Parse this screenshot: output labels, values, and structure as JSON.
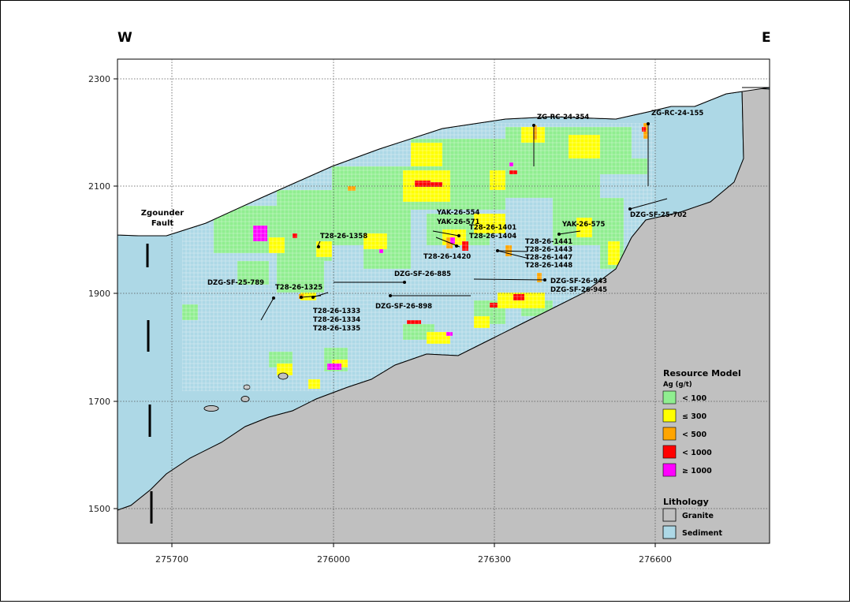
{
  "compass": {
    "west": "W",
    "east": "E"
  },
  "axes": {
    "x_ticks": [
      "275700",
      "276000",
      "276300",
      "276600"
    ],
    "y_ticks": [
      "2300",
      "2100",
      "1900",
      "1700",
      "1500"
    ]
  },
  "fault_label": {
    "line1": "Zgounder",
    "line2": "Fault"
  },
  "drill_labels": {
    "zg_rc_24_354": "ZG-RC-24-354",
    "zg_rc_24_155": "ZG-RC-24-155",
    "dzg_sf_25_702": "DZG-SF-25-702",
    "yak_26_554": "YAK-26-554",
    "yak_26_571": "YAK-26-571",
    "t28_26_1401": "T28-26-1401",
    "t28_26_1404": "T28-26-1404",
    "yak_26_575": "YAK-26-575",
    "t28_26_1358": "T28-26-1358",
    "t28_26_1420": "T28-26-1420",
    "t28_26_1441": "T28-26-1441",
    "t28_26_1443": "T28-26-1443",
    "t28_26_1447": "T28-26-1447",
    "t28_26_1448": "T28-26-1448",
    "dzg_sf_26_885": "DZG-SF-26-885",
    "dzg_sf_25_789": "DZG-SF-25-789",
    "t28_26_1325": "T28-26-1325",
    "dzg_sf_26_943": "DZG-SF-26-943",
    "dzg_sf_26_945": "DZG-SF-26-945",
    "dzg_sf_26_898": "DZG-SF-26-898",
    "t28_26_1333": "T28-26-1333",
    "t28_26_1334": "T28-26-1334",
    "t28_26_1335": "T28-26-1335"
  },
  "legend": {
    "title": "Resource Model",
    "subtitle": "Ag (g/t)",
    "classes": [
      {
        "label": "< 100",
        "color": "#90ee90"
      },
      {
        "label": "≤ 300",
        "color": "#ffff00"
      },
      {
        "label": "< 500",
        "color": "#ffa500"
      },
      {
        "label": "< 1000",
        "color": "#ff0000"
      },
      {
        "label": "≥ 1000",
        "color": "#ff00ff"
      }
    ],
    "lithology_title": "Lithology",
    "lithology": [
      {
        "label": "Granite",
        "color": "#c0c0c0"
      },
      {
        "label": "Sediment",
        "color": "#add8e6"
      }
    ]
  }
}
